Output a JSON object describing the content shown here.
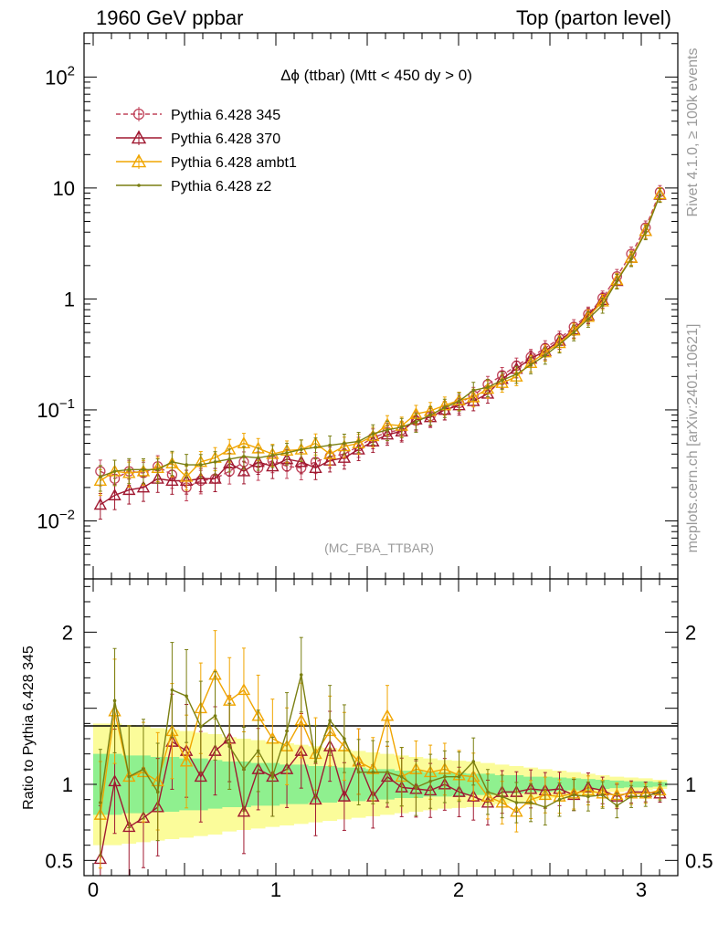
{
  "header": {
    "left": "1960 GeV ppbar",
    "right": "Top (parton level)"
  },
  "side": {
    "rivet": "Rivet 4.1.0, ≥ 100k events",
    "mcplots": "mcplots.cern.ch [arXiv:2401.10621]"
  },
  "chart_data": [
    {
      "type": "line",
      "panel": "main",
      "title": "Δϕ (ttbar) (Mtt < 450 dy > 0)",
      "analysis_label": "(MC_FBA_TTBAR)",
      "yscale": "log",
      "ylim": [
        0.003,
        250
      ],
      "xlim": [
        -0.05,
        3.2
      ],
      "ytick_labels": [
        {
          "value": 100,
          "base": "10",
          "exp": "2"
        },
        {
          "value": 10,
          "base": "10",
          "exp": ""
        },
        {
          "value": 1,
          "base": "1",
          "exp": ""
        },
        {
          "value": 0.1,
          "base": "10",
          "exp": "−1"
        },
        {
          "value": 0.01,
          "base": "10",
          "exp": "−2"
        }
      ],
      "x": [
        0.0393,
        0.1178,
        0.1963,
        0.2749,
        0.3534,
        0.432,
        0.5105,
        0.589,
        0.6676,
        0.7461,
        0.8247,
        0.9032,
        0.9817,
        1.0603,
        1.1388,
        1.2174,
        1.2959,
        1.3744,
        1.453,
        1.5315,
        1.6101,
        1.6886,
        1.7671,
        1.8457,
        1.9242,
        2.0028,
        2.0813,
        2.1598,
        2.2384,
        2.3169,
        2.3955,
        2.474,
        2.5525,
        2.6311,
        2.7096,
        2.7882,
        2.8667,
        2.9452,
        3.0238,
        3.1023
      ],
      "series": [
        {
          "name": "Pythia 6.428 345",
          "color": "#c0435a",
          "dash": "5,3",
          "marker": "circle-open",
          "values": [
            0.028,
            0.024,
            0.028,
            0.027,
            0.031,
            0.026,
            0.02,
            0.023,
            0.024,
            0.028,
            0.034,
            0.03,
            0.035,
            0.031,
            0.03,
            0.034,
            0.038,
            0.04,
            0.047,
            0.056,
            0.063,
            0.066,
            0.08,
            0.088,
            0.1,
            0.115,
            0.135,
            0.17,
            0.205,
            0.25,
            0.3,
            0.36,
            0.44,
            0.56,
            0.73,
            1.02,
            1.6,
            2.55,
            4.4,
            9.2
          ]
        },
        {
          "name": "Pythia 6.428 370",
          "color": "#a01830",
          "dash": "",
          "marker": "triangle-open",
          "values": [
            0.014,
            0.017,
            0.019,
            0.02,
            0.024,
            0.023,
            0.023,
            0.024,
            0.024,
            0.033,
            0.028,
            0.034,
            0.031,
            0.036,
            0.034,
            0.03,
            0.035,
            0.037,
            0.044,
            0.052,
            0.06,
            0.064,
            0.082,
            0.086,
            0.1,
            0.11,
            0.12,
            0.14,
            0.19,
            0.235,
            0.29,
            0.34,
            0.42,
            0.53,
            0.71,
            0.98,
            1.45,
            2.35,
            4.1,
            8.7
          ]
        },
        {
          "name": "Pythia 6.428 ambt1",
          "color": "#f0a500",
          "dash": "",
          "marker": "triangle-open",
          "values": [
            0.023,
            0.028,
            0.027,
            0.028,
            0.03,
            0.033,
            0.025,
            0.034,
            0.037,
            0.044,
            0.05,
            0.045,
            0.04,
            0.043,
            0.044,
            0.05,
            0.04,
            0.047,
            0.05,
            0.058,
            0.074,
            0.072,
            0.092,
            0.098,
            0.11,
            0.122,
            0.13,
            0.155,
            0.175,
            0.2,
            0.265,
            0.33,
            0.4,
            0.52,
            0.69,
            0.95,
            1.48,
            2.35,
            4.1,
            8.8
          ]
        },
        {
          "name": "Pythia 6.428 z2",
          "color": "#7a7f12",
          "dash": "",
          "marker": "dot",
          "values": [
            0.025,
            0.028,
            0.029,
            0.029,
            0.029,
            0.034,
            0.032,
            0.032,
            0.034,
            0.036,
            0.038,
            0.037,
            0.039,
            0.041,
            0.044,
            0.046,
            0.048,
            0.05,
            0.052,
            0.061,
            0.066,
            0.07,
            0.078,
            0.09,
            0.105,
            0.12,
            0.15,
            0.16,
            0.185,
            0.21,
            0.255,
            0.31,
            0.39,
            0.5,
            0.66,
            0.88,
            1.45,
            2.3,
            4.0,
            8.65
          ]
        }
      ]
    },
    {
      "type": "line",
      "panel": "ratio",
      "ylabel": "Ratio to Pythia 6.428 345",
      "ylim": [
        0.4,
        2.35
      ],
      "xlim": [
        -0.05,
        3.2
      ],
      "ytick_labels": [
        2,
        1,
        0.5
      ],
      "xtick_labels": [
        0,
        1,
        2,
        3
      ],
      "x": [
        0.0393,
        0.1178,
        0.1963,
        0.2749,
        0.3534,
        0.432,
        0.5105,
        0.589,
        0.6676,
        0.7461,
        0.8247,
        0.9032,
        0.9817,
        1.0603,
        1.1388,
        1.2174,
        1.2959,
        1.3744,
        1.453,
        1.5315,
        1.6101,
        1.6886,
        1.7671,
        1.8457,
        1.9242,
        2.0028,
        2.0813,
        2.1598,
        2.2384,
        2.3169,
        2.3955,
        2.474,
        2.5525,
        2.6311,
        2.7096,
        2.7882,
        2.8667,
        2.9452,
        3.0238,
        3.1023
      ],
      "band_outer": [
        0.4,
        0.4,
        0.39,
        0.38,
        0.37,
        0.36,
        0.35,
        0.34,
        0.33,
        0.31,
        0.3,
        0.29,
        0.28,
        0.27,
        0.26,
        0.25,
        0.24,
        0.23,
        0.22,
        0.21,
        0.2,
        0.19,
        0.18,
        0.17,
        0.16,
        0.155,
        0.15,
        0.14,
        0.13,
        0.12,
        0.11,
        0.1,
        0.09,
        0.08,
        0.07,
        0.06,
        0.05,
        0.045,
        0.04,
        0.03
      ],
      "band_inner": [
        0.2,
        0.2,
        0.19,
        0.19,
        0.18,
        0.18,
        0.17,
        0.17,
        0.16,
        0.15,
        0.15,
        0.14,
        0.14,
        0.13,
        0.13,
        0.12,
        0.12,
        0.11,
        0.11,
        0.1,
        0.1,
        0.09,
        0.09,
        0.08,
        0.08,
        0.075,
        0.07,
        0.07,
        0.06,
        0.06,
        0.05,
        0.05,
        0.045,
        0.04,
        0.035,
        0.03,
        0.025,
        0.02,
        0.02,
        0.015
      ],
      "series": [
        {
          "name": "Pythia 6.428 370",
          "color": "#a01830",
          "marker": "triangle-open",
          "values": [
            0.51,
            1.02,
            0.72,
            0.78,
            0.85,
            1.28,
            1.22,
            1.05,
            1.22,
            1.3,
            0.82,
            1.1,
            1.05,
            1.1,
            1.22,
            0.9,
            1.25,
            0.92,
            1.15,
            0.92,
            1.05,
            0.98,
            0.97,
            0.96,
            1.0,
            0.95,
            0.92,
            0.88,
            0.95,
            0.95,
            0.97,
            0.96,
            0.97,
            0.93,
            0.98,
            0.96,
            0.92,
            0.95,
            0.95,
            0.94
          ]
        },
        {
          "name": "Pythia 6.428 ambt1",
          "color": "#f0a500",
          "marker": "triangle-open",
          "values": [
            0.8,
            1.48,
            1.05,
            1.08,
            1.02,
            1.35,
            1.15,
            1.5,
            1.72,
            1.55,
            1.62,
            1.45,
            1.3,
            1.25,
            1.42,
            1.2,
            1.35,
            1.25,
            1.15,
            1.1,
            1.45,
            1.05,
            1.1,
            1.08,
            1.1,
            1.06,
            1.05,
            0.92,
            0.88,
            0.82,
            0.9,
            0.93,
            0.92,
            0.94,
            0.96,
            0.94,
            0.93,
            0.94,
            0.94,
            0.96
          ]
        },
        {
          "name": "Pythia 6.428 z2",
          "color": "#7a7f12",
          "marker": "dot",
          "values": [
            0.88,
            1.55,
            1.05,
            1.1,
            0.95,
            1.62,
            1.58,
            1.38,
            1.45,
            1.25,
            1.1,
            1.22,
            1.05,
            1.35,
            1.72,
            1.15,
            1.42,
            1.3,
            1.08,
            1.08,
            1.08,
            1.05,
            0.98,
            1.02,
            1.05,
            1.05,
            1.15,
            0.95,
            0.92,
            0.88,
            0.88,
            0.85,
            0.9,
            0.93,
            0.92,
            0.93,
            0.86,
            0.92,
            0.92,
            0.95
          ]
        }
      ]
    }
  ]
}
